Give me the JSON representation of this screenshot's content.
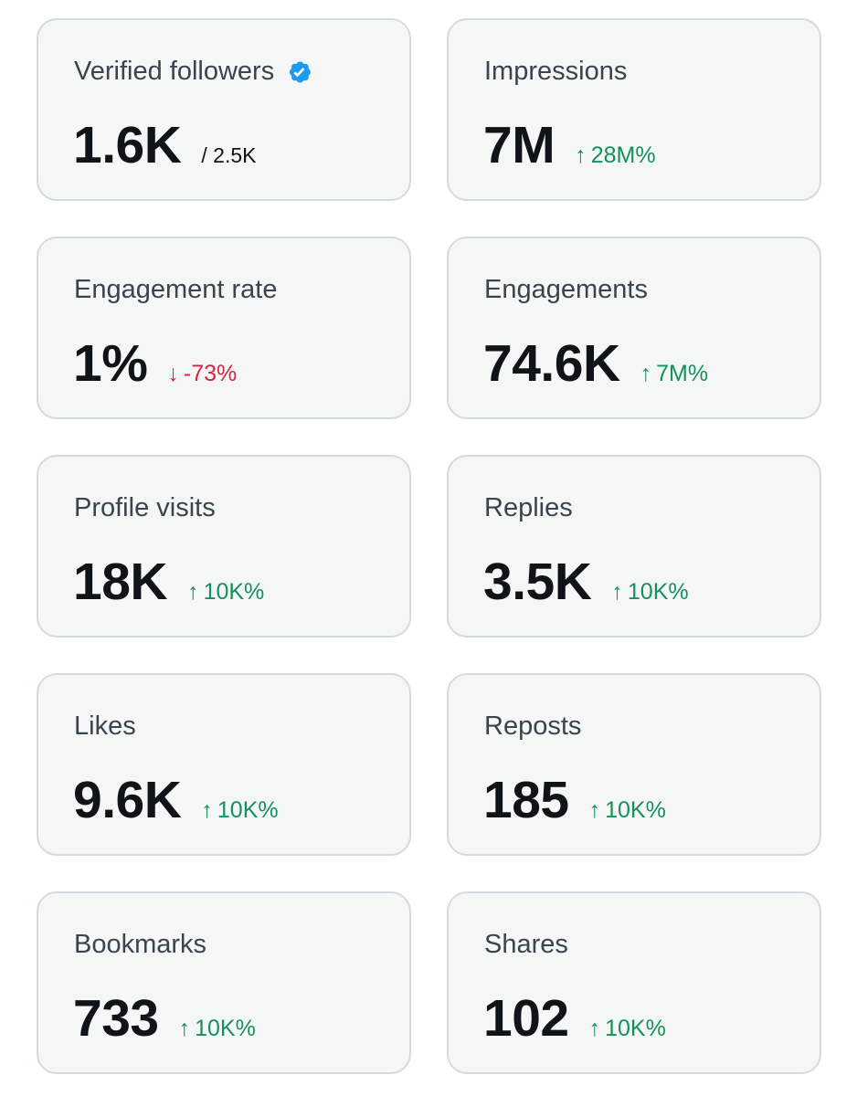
{
  "colors": {
    "card_bg": "#f5f7f7",
    "card_border": "#d4dbe0",
    "title": "#3a444d",
    "value": "#0f1419",
    "positive": "#14915a",
    "negative": "#d8233f",
    "verified_badge": "#1d9bf0"
  },
  "cards": [
    {
      "title": "Verified followers",
      "value": "1.6K",
      "sub": "/ 2.5K",
      "badge": "verified-badge-icon"
    },
    {
      "title": "Impressions",
      "value": "7M",
      "delta": "28M%",
      "direction": "up"
    },
    {
      "title": "Engagement rate",
      "value": "1%",
      "delta": "-73%",
      "direction": "down"
    },
    {
      "title": "Engagements",
      "value": "74.6K",
      "delta": "7M%",
      "direction": "up"
    },
    {
      "title": "Profile visits",
      "value": "18K",
      "delta": "10K%",
      "direction": "up"
    },
    {
      "title": "Replies",
      "value": "3.5K",
      "delta": "10K%",
      "direction": "up"
    },
    {
      "title": "Likes",
      "value": "9.6K",
      "delta": "10K%",
      "direction": "up"
    },
    {
      "title": "Reposts",
      "value": "185",
      "delta": "10K%",
      "direction": "up"
    },
    {
      "title": "Bookmarks",
      "value": "733",
      "delta": "10K%",
      "direction": "up"
    },
    {
      "title": "Shares",
      "value": "102",
      "delta": "10K%",
      "direction": "up"
    }
  ]
}
